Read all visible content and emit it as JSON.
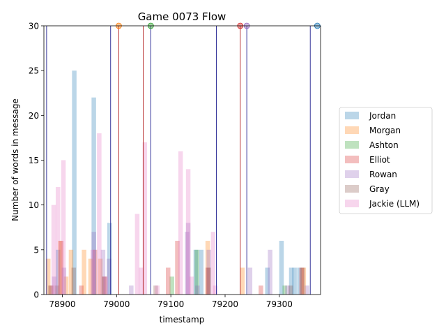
{
  "chart_data": {
    "type": "bar",
    "title": "Game 0073 Flow",
    "xlabel": "timestamp",
    "ylabel": "Number of words in message",
    "xlim": [
      78866,
      79376
    ],
    "ylim": [
      0,
      30
    ],
    "x_ticks": [
      78900,
      79000,
      79100,
      79200,
      79300
    ],
    "y_ticks": [
      0,
      5,
      10,
      15,
      20,
      25,
      30
    ],
    "grid": false,
    "legend_position": "center right, outside plot",
    "series": [
      {
        "name": "Jordan",
        "color": "#1f77b4",
        "points": [
          [
            78892,
            5
          ],
          [
            78922,
            25
          ],
          [
            78958,
            22
          ],
          [
            78987,
            8
          ],
          [
            79146,
            5
          ],
          [
            79156,
            5
          ],
          [
            79278,
            3
          ],
          [
            79304,
            6
          ],
          [
            79322,
            3
          ],
          [
            79328,
            3
          ],
          [
            79337,
            3
          ]
        ]
      },
      {
        "name": "Morgan",
        "color": "#ff7f0e",
        "points": [
          [
            78874,
            4
          ],
          [
            78896,
            6
          ],
          [
            78907,
            2
          ],
          [
            78916,
            5
          ],
          [
            78940,
            5
          ],
          [
            78952,
            4
          ],
          [
            78970,
            4
          ],
          [
            79168,
            6
          ],
          [
            79232,
            3
          ],
          [
            79345,
            3
          ]
        ]
      },
      {
        "name": "Ashton",
        "color": "#2ca02c",
        "points": [
          [
            79102,
            2
          ],
          [
            79148,
            5
          ],
          [
            79310,
            1
          ]
        ]
      },
      {
        "name": "Elliot",
        "color": "#d62728",
        "points": [
          [
            78880,
            1
          ],
          [
            78898,
            6
          ],
          [
            78935,
            1
          ],
          [
            78960,
            5
          ],
          [
            78977,
            2
          ],
          [
            79095,
            3
          ],
          [
            79112,
            6
          ],
          [
            79168,
            3
          ],
          [
            79266,
            1
          ],
          [
            79341,
            3
          ]
        ]
      },
      {
        "name": "Rowan",
        "color": "#9467bd",
        "points": [
          [
            78885,
            2
          ],
          [
            78903,
            3
          ],
          [
            78958,
            7
          ],
          [
            78975,
            5
          ],
          [
            78986,
            4
          ],
          [
            79027,
            1
          ],
          [
            79130,
            7
          ],
          [
            79132,
            8
          ],
          [
            79149,
            1
          ],
          [
            79170,
            5
          ],
          [
            79246,
            3
          ],
          [
            79283,
            5
          ],
          [
            79315,
            1
          ],
          [
            79351,
            1
          ]
        ]
      },
      {
        "name": "Gray",
        "color": "#8c564b",
        "points": [
          [
            78878,
            1
          ],
          [
            78890,
            1
          ],
          [
            78921,
            3
          ],
          [
            78978,
            2
          ],
          [
            79072,
            1
          ],
          [
            79170,
            3
          ],
          [
            79321,
            1
          ],
          [
            79343,
            3
          ]
        ]
      },
      {
        "name": "Jackie (LLM)",
        "color": "#e377c2",
        "points": [
          [
            78884,
            10
          ],
          [
            78892,
            12
          ],
          [
            78902,
            15
          ],
          [
            78956,
            5
          ],
          [
            78968,
            18
          ],
          [
            78980,
            2
          ],
          [
            79038,
            9
          ],
          [
            79045,
            3
          ],
          [
            79052,
            17
          ],
          [
            79075,
            1
          ],
          [
            79118,
            16
          ],
          [
            79132,
            14
          ],
          [
            79138,
            2
          ],
          [
            79178,
            7
          ],
          [
            79182,
            1
          ],
          [
            79258,
            0
          ]
        ]
      }
    ],
    "vertical_lines": [
      {
        "x": 78871,
        "color": "#1f1f8f"
      },
      {
        "x": 78989,
        "color": "#1f1f8f"
      },
      {
        "x": 79004,
        "color": "#b22222"
      },
      {
        "x": 79049,
        "color": "#b22222"
      },
      {
        "x": 79063,
        "color": "#1f1f8f"
      },
      {
        "x": 79184,
        "color": "#1f1f8f"
      },
      {
        "x": 79228,
        "color": "#b22222"
      },
      {
        "x": 79240,
        "color": "#1f1f8f"
      },
      {
        "x": 79357,
        "color": "#1f1f8f"
      }
    ],
    "top_markers": [
      {
        "x": 79004,
        "color": "#ff7f0e"
      },
      {
        "x": 79063,
        "color": "#2ca02c"
      },
      {
        "x": 79228,
        "color": "#d62728"
      },
      {
        "x": 79240,
        "color": "#9467bd"
      },
      {
        "x": 79370,
        "color": "#1f77b4"
      }
    ]
  }
}
